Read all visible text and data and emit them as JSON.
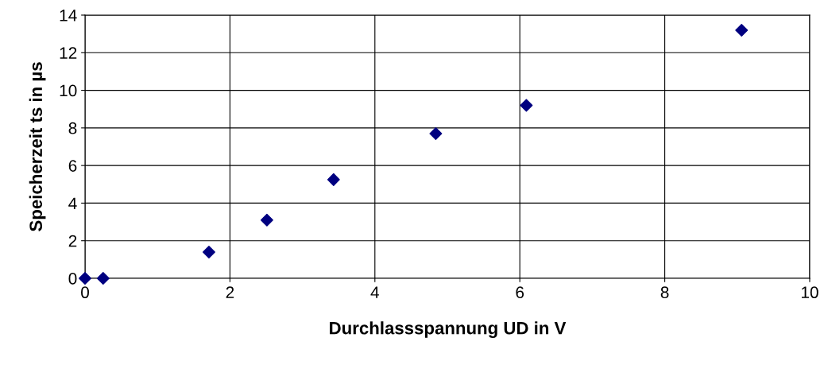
{
  "chart_data": {
    "type": "scatter",
    "xlabel": "Durchlassspannung UD in V",
    "ylabel": "Speicherzeit ts in µs",
    "x": [
      0,
      0.25,
      1.71,
      2.51,
      3.43,
      4.84,
      6.09,
      9.06
    ],
    "series": [
      {
        "color": "#000080",
        "values": [
          0,
          0,
          1.4,
          3.1,
          5.25,
          7.7,
          9.2,
          13.2
        ]
      }
    ],
    "xlim": [
      0,
      10
    ],
    "xticks": [
      0,
      2,
      4,
      6,
      8,
      10
    ],
    "ylim": [
      0,
      14
    ],
    "yticks": [
      0,
      2,
      4,
      6,
      8,
      10,
      12,
      14
    ],
    "grid": true,
    "marker": "diamond",
    "legend": false
  }
}
